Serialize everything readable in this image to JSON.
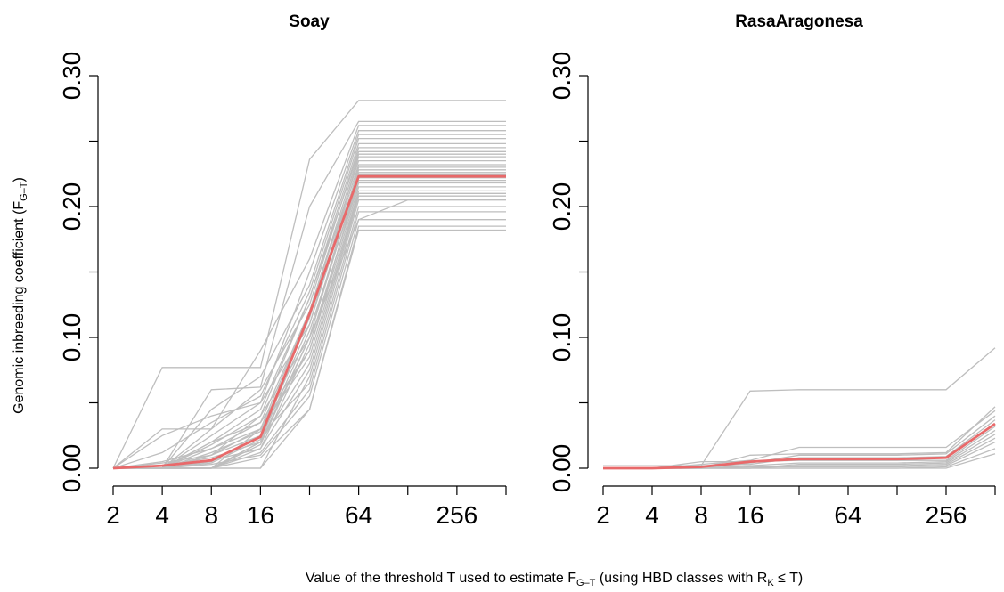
{
  "figure": {
    "ylabel_main": "Genomic inbreeding coefficient (F",
    "ylabel_sub": "G–T",
    "ylabel_end": ")",
    "xlabel_part1": "Value of the threshold T used to estimate F",
    "xlabel_sub1": "G–T",
    "xlabel_part2": " (using HBD classes with R",
    "xlabel_sub2": "K",
    "xlabel_part3": " ≤  T)"
  },
  "colors": {
    "individual_line": "#bebebe",
    "mean_line": "#e8696a",
    "axis": "#000000"
  },
  "chart_data": [
    {
      "type": "line",
      "title": "Soay",
      "x": [
        2,
        4,
        8,
        16,
        32,
        64,
        128,
        256,
        512
      ],
      "x_tick_labels": [
        "2",
        "4",
        "8",
        "16",
        "64",
        "256"
      ],
      "x_tick_label_values": [
        2,
        4,
        8,
        16,
        64,
        256
      ],
      "x_scale": "log2",
      "xlim": [
        2,
        512
      ],
      "ylim": [
        0,
        0.3
      ],
      "y_ticks": [
        0,
        0.05,
        0.1,
        0.15,
        0.2,
        0.25,
        0.3
      ],
      "y_tick_labels": [
        "0.00",
        "0.10",
        "0.20",
        "0.30"
      ],
      "y_tick_label_values": [
        0,
        0.1,
        0.2,
        0.3
      ],
      "grid": false,
      "mean_series": {
        "values": [
          0.0,
          0.002,
          0.006,
          0.024,
          0.118,
          0.223,
          0.223,
          0.223,
          0.223
        ]
      },
      "individual_series": [
        {
          "values": [
            0.0,
            0.077,
            0.077,
            0.077,
            0.236,
            0.281,
            0.281,
            0.281,
            0.281
          ]
        },
        {
          "values": [
            0.0,
            0.0,
            0.06,
            0.062,
            0.2,
            0.265,
            0.265,
            0.265,
            0.265
          ]
        },
        {
          "values": [
            0.0,
            0.03,
            0.03,
            0.09,
            0.16,
            0.262,
            0.262,
            0.262,
            0.262
          ]
        },
        {
          "values": [
            0.0,
            0.025,
            0.04,
            0.05,
            0.15,
            0.258,
            0.258,
            0.258,
            0.258
          ]
        },
        {
          "values": [
            0.0,
            0.0,
            0.045,
            0.07,
            0.14,
            0.255,
            0.255,
            0.255,
            0.255
          ]
        },
        {
          "values": [
            0.0,
            0.012,
            0.035,
            0.055,
            0.135,
            0.252,
            0.252,
            0.252,
            0.252
          ]
        },
        {
          "values": [
            0.0,
            0.0,
            0.02,
            0.045,
            0.13,
            0.248,
            0.248,
            0.248,
            0.248
          ]
        },
        {
          "values": [
            0.0,
            0.0,
            0.03,
            0.06,
            0.125,
            0.245,
            0.245,
            0.245,
            0.245
          ]
        },
        {
          "values": [
            0.0,
            0.0,
            0.01,
            0.04,
            0.13,
            0.242,
            0.242,
            0.242,
            0.242
          ]
        },
        {
          "values": [
            0.0,
            0.005,
            0.015,
            0.035,
            0.12,
            0.24,
            0.24,
            0.24,
            0.24
          ]
        },
        {
          "values": [
            0.0,
            0.0,
            0.025,
            0.05,
            0.11,
            0.238,
            0.238,
            0.238,
            0.238
          ]
        },
        {
          "values": [
            0.0,
            0.0,
            0.0,
            0.03,
            0.12,
            0.235,
            0.235,
            0.235,
            0.235
          ]
        },
        {
          "values": [
            0.0,
            0.0,
            0.012,
            0.028,
            0.115,
            0.232,
            0.232,
            0.232,
            0.232
          ]
        },
        {
          "values": [
            0.0,
            0.0,
            0.018,
            0.04,
            0.1,
            0.23,
            0.23,
            0.23,
            0.23
          ]
        },
        {
          "values": [
            0.0,
            0.0,
            0.005,
            0.025,
            0.11,
            0.228,
            0.228,
            0.228,
            0.228
          ]
        },
        {
          "values": [
            0.0,
            0.002,
            0.008,
            0.02,
            0.12,
            0.226,
            0.226,
            0.226,
            0.226
          ]
        },
        {
          "values": [
            0.0,
            0.0,
            0.0,
            0.018,
            0.1,
            0.224,
            0.224,
            0.224,
            0.224
          ]
        },
        {
          "values": [
            0.0,
            0.0,
            0.02,
            0.035,
            0.09,
            0.222,
            0.222,
            0.222,
            0.222
          ]
        },
        {
          "values": [
            0.0,
            0.0,
            0.004,
            0.022,
            0.105,
            0.22,
            0.22,
            0.22,
            0.22
          ]
        },
        {
          "values": [
            0.0,
            0.0,
            0.0,
            0.015,
            0.095,
            0.218,
            0.218,
            0.218,
            0.218
          ]
        },
        {
          "values": [
            0.0,
            0.004,
            0.01,
            0.03,
            0.09,
            0.215,
            0.215,
            0.215,
            0.215
          ]
        },
        {
          "values": [
            0.0,
            0.0,
            0.015,
            0.03,
            0.085,
            0.212,
            0.212,
            0.212,
            0.212
          ]
        },
        {
          "values": [
            0.0,
            0.0,
            0.0,
            0.02,
            0.08,
            0.21,
            0.21,
            0.21,
            0.21
          ]
        },
        {
          "values": [
            0.0,
            0.0,
            0.006,
            0.015,
            0.075,
            0.208,
            0.208,
            0.208,
            0.208
          ]
        },
        {
          "values": [
            0.0,
            0.0,
            0.0,
            0.0,
            0.07,
            0.205,
            0.205,
            0.205,
            0.205
          ]
        },
        {
          "values": [
            0.0,
            0.0,
            0.01,
            0.025,
            0.065,
            0.2,
            0.2,
            0.2,
            0.2
          ]
        },
        {
          "values": [
            0.0,
            0.0,
            0.0,
            0.012,
            0.06,
            0.196,
            0.196,
            0.196,
            0.196
          ]
        },
        {
          "values": [
            0.0,
            0.0,
            0.003,
            0.01,
            0.055,
            0.19,
            0.19,
            0.19,
            0.19
          ]
        },
        {
          "values": [
            0.0,
            0.0,
            0.0,
            0.0,
            0.045,
            0.185,
            0.185,
            0.185,
            0.185
          ]
        },
        {
          "values": [
            0.0,
            0.0,
            0.0,
            0.008,
            0.045,
            0.182,
            0.182,
            0.182,
            0.182
          ]
        },
        {
          "values": [
            0.0,
            0.0,
            0.0,
            0.02,
            0.1,
            0.19,
            0.205,
            0.205,
            0.205
          ]
        }
      ]
    },
    {
      "type": "line",
      "title": "RasaAragonesa",
      "x": [
        2,
        4,
        8,
        16,
        32,
        64,
        128,
        256,
        512
      ],
      "x_tick_labels": [
        "2",
        "4",
        "8",
        "16",
        "64",
        "256"
      ],
      "x_tick_label_values": [
        2,
        4,
        8,
        16,
        64,
        256
      ],
      "x_scale": "log2",
      "xlim": [
        2,
        512
      ],
      "ylim": [
        0,
        0.3
      ],
      "y_ticks": [
        0,
        0.05,
        0.1,
        0.15,
        0.2,
        0.25,
        0.3
      ],
      "y_tick_labels": [
        "0.00",
        "0.10",
        "0.20",
        "0.30"
      ],
      "y_tick_label_values": [
        0,
        0.1,
        0.2,
        0.3
      ],
      "grid": false,
      "mean_series": {
        "values": [
          0.0,
          0.0,
          0.001,
          0.005,
          0.007,
          0.007,
          0.007,
          0.008,
          0.034
        ]
      },
      "individual_series": [
        {
          "values": [
            0.0,
            0.0,
            0.002,
            0.059,
            0.06,
            0.06,
            0.06,
            0.06,
            0.092
          ]
        },
        {
          "values": [
            0.0,
            0.0,
            0.0,
            0.01,
            0.011,
            0.011,
            0.011,
            0.012,
            0.047
          ]
        },
        {
          "values": [
            0.0,
            0.0,
            0.003,
            0.006,
            0.016,
            0.016,
            0.016,
            0.016,
            0.044
          ]
        },
        {
          "values": [
            0.0,
            0.0,
            0.0,
            0.004,
            0.01,
            0.01,
            0.01,
            0.011,
            0.04
          ]
        },
        {
          "values": [
            0.002,
            0.002,
            0.002,
            0.003,
            0.008,
            0.008,
            0.008,
            0.009,
            0.037
          ]
        },
        {
          "values": [
            0.0,
            0.0,
            0.005,
            0.005,
            0.006,
            0.006,
            0.006,
            0.006,
            0.032
          ]
        },
        {
          "values": [
            0.0,
            0.0,
            0.0,
            0.002,
            0.004,
            0.004,
            0.004,
            0.005,
            0.029
          ]
        },
        {
          "values": [
            0.0,
            0.0,
            0.0,
            0.0,
            0.003,
            0.003,
            0.003,
            0.004,
            0.026
          ]
        },
        {
          "values": [
            0.0,
            0.0,
            0.0,
            0.0,
            0.002,
            0.002,
            0.002,
            0.003,
            0.023
          ]
        },
        {
          "values": [
            0.0,
            0.0,
            0.0,
            0.001,
            0.001,
            0.001,
            0.001,
            0.002,
            0.02
          ]
        },
        {
          "values": [
            0.0,
            0.0,
            0.0,
            0.0,
            0.0,
            0.0,
            0.0,
            0.001,
            0.015
          ]
        },
        {
          "values": [
            0.0,
            0.0,
            0.0,
            0.0,
            0.0,
            0.0,
            0.0,
            0.0,
            0.011
          ]
        }
      ]
    }
  ]
}
